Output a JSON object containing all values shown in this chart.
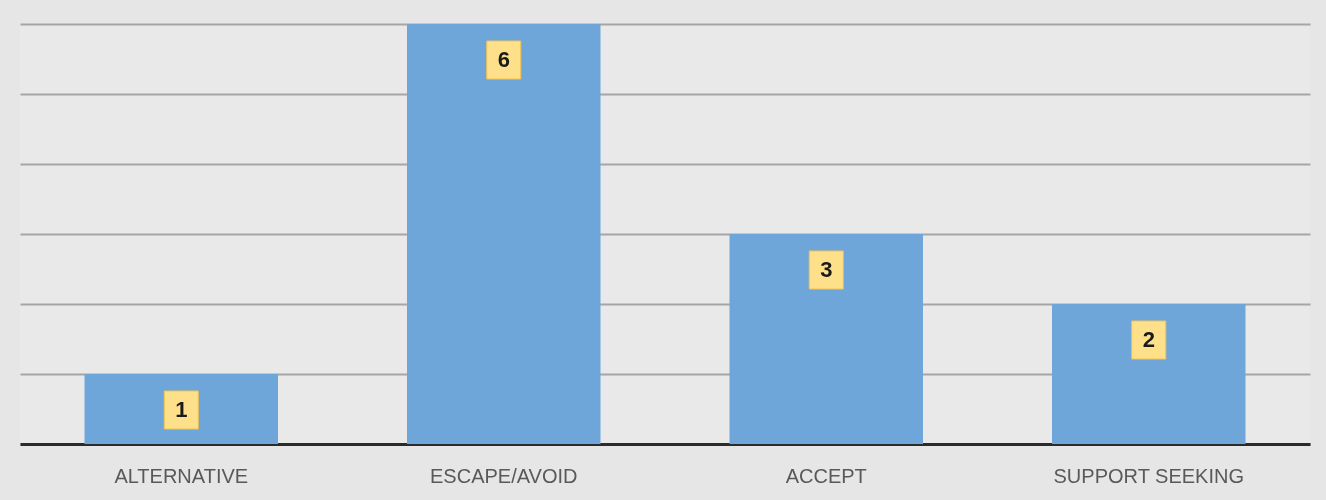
{
  "chart_data": {
    "type": "bar",
    "categories": [
      "ALTERNATIVE",
      "ESCAPE/AVOID",
      "ACCEPT",
      "SUPPORT SEEKING"
    ],
    "values": [
      1,
      6,
      3,
      2
    ],
    "color": "#6fa6da",
    "ylim": [
      0,
      6
    ],
    "yticks": [
      {
        "value": 0,
        "label": null
      },
      {
        "value": 1,
        "label": null
      },
      {
        "value": 2,
        "label": null
      },
      {
        "value": 3,
        "label": null
      },
      {
        "value": 4,
        "label": null
      },
      {
        "value": 5,
        "label": null
      },
      {
        "value": 6,
        "label": null
      }
    ],
    "tick_labels": "x",
    "grid": "y",
    "data_labels": true
  }
}
